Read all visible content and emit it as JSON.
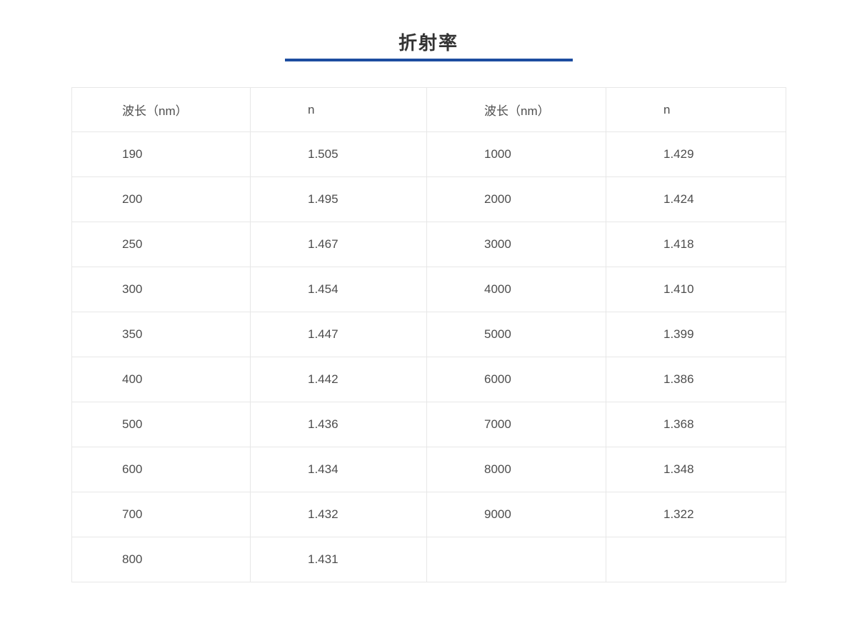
{
  "title": {
    "text": "折射率",
    "color": "#333333",
    "underline_color": "#1d4da0"
  },
  "table": {
    "border_color": "#e7e7e7",
    "text_color": "#4d4d4d",
    "columns": [
      "波长（nm）",
      "n",
      "波长（nm）",
      "n"
    ],
    "rows": [
      [
        "190",
        "1.505",
        "1000",
        "1.429"
      ],
      [
        "200",
        "1.495",
        "2000",
        "1.424"
      ],
      [
        "250",
        "1.467",
        "3000",
        "1.418"
      ],
      [
        "300",
        "1.454",
        "4000",
        "1.410"
      ],
      [
        "350",
        "1.447",
        "5000",
        "1.399"
      ],
      [
        "400",
        "1.442",
        "6000",
        "1.386"
      ],
      [
        "500",
        "1.436",
        "7000",
        "1.368"
      ],
      [
        "600",
        "1.434",
        "8000",
        "1.348"
      ],
      [
        "700",
        "1.432",
        "9000",
        "1.322"
      ],
      [
        "800",
        "1.431",
        "",
        ""
      ]
    ]
  },
  "chart_data": {
    "type": "table",
    "title": "折射率",
    "columns": [
      "波长（nm）",
      "n",
      "波长（nm）",
      "n"
    ],
    "series": [
      {
        "name": "折射率 n vs 波长 (nm)",
        "x": [
          190,
          200,
          250,
          300,
          350,
          400,
          500,
          600,
          700,
          800,
          1000,
          2000,
          3000,
          4000,
          5000,
          6000,
          7000,
          8000,
          9000
        ],
        "values": [
          1.505,
          1.495,
          1.467,
          1.454,
          1.447,
          1.442,
          1.436,
          1.434,
          1.432,
          1.431,
          1.429,
          1.424,
          1.418,
          1.41,
          1.399,
          1.386,
          1.368,
          1.348,
          1.322
        ]
      }
    ],
    "layout": {
      "legend": "none",
      "grid": "cell-borders"
    }
  }
}
